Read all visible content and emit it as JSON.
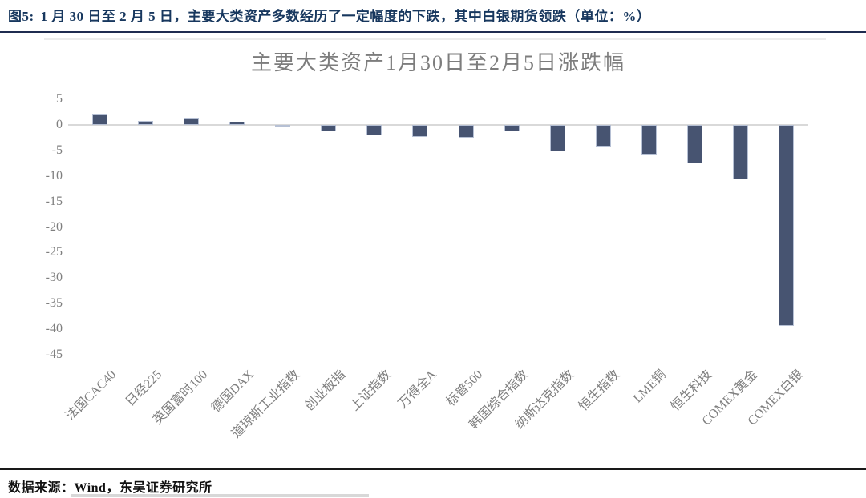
{
  "figure_header": {
    "label": "图5:",
    "text": "1 月 30 日至 2 月 5 日，主要大类资产多数经历了一定幅度的下跌，其中白银期货领跌（单位：%）"
  },
  "chart_data": {
    "type": "bar",
    "title": "主要大类资产1月30日至2月5日涨跌幅",
    "categories": [
      "法国CAC40",
      "日经225",
      "英国富时100",
      "德国DAX",
      "道琼斯工业指数",
      "创业板指",
      "上证指数",
      "万得全A",
      "标普500",
      "韩国综合指数",
      "纳斯达克指数",
      "恒生指数",
      "LME铜",
      "恒生科技",
      "COMEX黄金",
      "COMEX白银"
    ],
    "values": [
      2.0,
      0.7,
      1.2,
      0.6,
      -0.4,
      -1.3,
      -2.1,
      -2.3,
      -2.5,
      -1.3,
      -5.2,
      -4.2,
      -5.8,
      -7.5,
      -10.6,
      -39.4
    ],
    "xlabel": "",
    "ylabel": "",
    "unit": "%",
    "ylim": [
      5,
      -45
    ],
    "yticks": [
      5,
      0,
      -5,
      -10,
      -15,
      -20,
      -25,
      -30,
      -35,
      -40,
      -45
    ],
    "grid": false,
    "legend_position": "none",
    "bar_color": "#475471",
    "bar_edge_color": "#b6c0d4",
    "axis_text_color": "#7f7f7f",
    "zero_line_color": "#D9D9D9"
  },
  "footer": {
    "source": "数据来源：Wind，东吴证券研究所"
  },
  "colors": {
    "header_text": "#17375E",
    "header_rule": "#1f2c50",
    "footer_rule": "#191919"
  }
}
